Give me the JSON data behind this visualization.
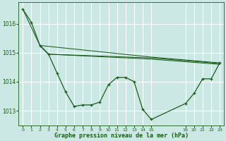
{
  "background_color": "#cce8e4",
  "grid_color": "#b0d8d2",
  "line_color": "#1a5c1a",
  "marker_color": "#1a5c1a",
  "xlabel": "Graphe pression niveau de la mer (hPa)",
  "xlabel_color": "#1a5c1a",
  "tick_color": "#1a5c1a",
  "ylim": [
    1012.5,
    1016.75
  ],
  "yticks": [
    1013,
    1014,
    1015,
    1016
  ],
  "xlim": [
    -0.5,
    23.5
  ],
  "xticks": [
    0,
    1,
    2,
    3,
    4,
    5,
    6,
    7,
    8,
    9,
    10,
    11,
    12,
    13,
    14,
    15,
    19,
    20,
    21,
    22,
    23
  ],
  "series": [
    {
      "x": [
        0,
        1,
        2,
        3,
        4,
        5,
        6,
        7,
        8,
        9,
        10,
        11,
        12,
        13,
        14,
        15,
        19,
        20,
        21,
        22,
        23
      ],
      "y": [
        1016.5,
        1016.05,
        1015.25,
        1014.95,
        1014.3,
        1013.65,
        1013.15,
        1013.2,
        1013.2,
        1013.3,
        1013.9,
        1014.15,
        1014.15,
        1014.0,
        1013.05,
        1012.7,
        1013.25,
        1013.6,
        1014.1,
        1014.1,
        1014.65
      ],
      "has_markers": true
    },
    {
      "x": [
        0,
        2,
        15,
        23
      ],
      "y": [
        1016.5,
        1015.25,
        1014.85,
        1014.65
      ],
      "has_markers": false
    },
    {
      "x": [
        2,
        3,
        15,
        23
      ],
      "y": [
        1015.25,
        1014.95,
        1014.82,
        1014.63
      ],
      "has_markers": false
    },
    {
      "x": [
        2,
        3,
        15,
        23
      ],
      "y": [
        1015.25,
        1014.95,
        1014.78,
        1014.6
      ],
      "has_markers": false
    }
  ]
}
